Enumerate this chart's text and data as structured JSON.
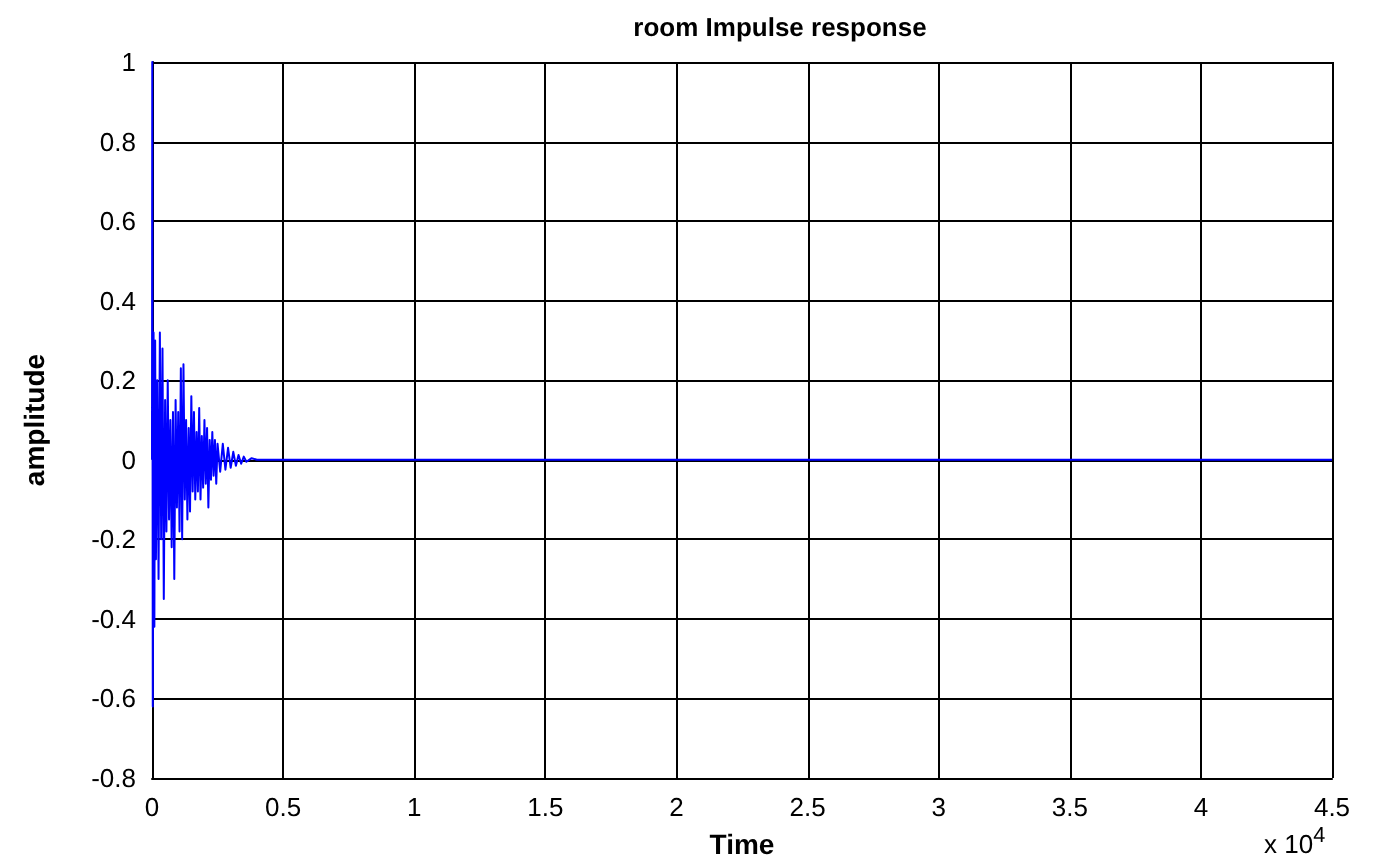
{
  "chart_data": {
    "type": "line",
    "title": "room Impulse response",
    "xlabel": "Time",
    "ylabel": "amplitude",
    "annotations": [
      "x 10$^{4}$"
    ],
    "series": [
      {
        "color": "#0000ff",
        "x": [
          0,
          0.001,
          0.003,
          0.006,
          0.009,
          0.012,
          0.015,
          0.02,
          0.025,
          0.03,
          0.035,
          0.04,
          0.045,
          0.05,
          0.055,
          0.06,
          0.065,
          0.07,
          0.075,
          0.08,
          0.085,
          0.09,
          0.095,
          0.1,
          0.105,
          0.11,
          0.115,
          0.12,
          0.125,
          0.13,
          0.135,
          0.14,
          0.145,
          0.15,
          0.155,
          0.16,
          0.165,
          0.17,
          0.175,
          0.18,
          0.185,
          0.19,
          0.195,
          0.2,
          0.205,
          0.21,
          0.215,
          0.22,
          0.225,
          0.23,
          0.235,
          0.24,
          0.245,
          0.25,
          0.26,
          0.27,
          0.28,
          0.29,
          0.3,
          0.31,
          0.32,
          0.33,
          0.34,
          0.35,
          0.36,
          0.38,
          0.4,
          4.5
        ],
        "values": [
          0,
          1,
          -0.62,
          0.32,
          -0.42,
          0.3,
          -0.25,
          0.2,
          -0.3,
          0.32,
          -0.2,
          0.28,
          -0.35,
          0.15,
          -0.18,
          0.2,
          -0.15,
          0.1,
          -0.22,
          0.12,
          -0.3,
          0.15,
          -0.12,
          0.12,
          -0.18,
          0.23,
          -0.2,
          0.24,
          -0.1,
          0.1,
          -0.15,
          0.08,
          -0.13,
          0.16,
          -0.08,
          0.12,
          -0.1,
          0.07,
          -0.08,
          0.13,
          -0.1,
          0.06,
          -0.07,
          0.1,
          -0.06,
          0.08,
          -0.12,
          0.05,
          -0.05,
          0.07,
          -0.04,
          0.05,
          -0.06,
          0.04,
          -0.03,
          0.04,
          -0.025,
          0.03,
          -0.02,
          0.02,
          -0.015,
          0.012,
          -0.01,
          0.008,
          -0.005,
          0.004,
          0,
          0
        ]
      }
    ],
    "xlim": [
      0,
      4.5
    ],
    "xticks": [
      0,
      0.5,
      1,
      1.5,
      2,
      2.5,
      3,
      3.5,
      4,
      4.5
    ],
    "ylim": [
      -0.8,
      1
    ],
    "yticks": [
      -0.8,
      -0.6,
      -0.4,
      -0.2,
      0,
      0.2,
      0.4,
      0.6,
      0.8,
      1
    ],
    "grid": true,
    "marker": "none",
    "line_style": "solid"
  }
}
